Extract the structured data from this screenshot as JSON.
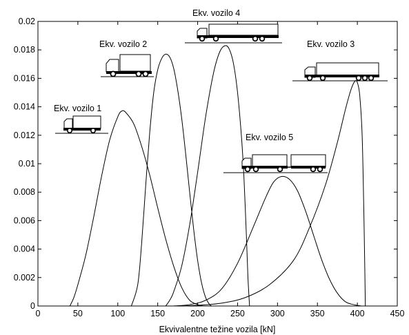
{
  "chart_data": {
    "type": "line",
    "title": "",
    "xlabel": "Ekvivalentne težine vozila [kN]",
    "ylabel": "",
    "xlim": [
      0,
      450
    ],
    "ylim": [
      0,
      0.02
    ],
    "grid": false,
    "legend": "none",
    "x_ticks": [
      "0",
      "50",
      "100",
      "150",
      "200",
      "250",
      "300",
      "350",
      "400",
      "450"
    ],
    "y_ticks": [
      "0",
      "0.002",
      "0.004",
      "0.006",
      "0.008",
      "0.01",
      "0.012",
      "0.014",
      "0.016",
      "0.018",
      "0.02"
    ],
    "series": [
      {
        "label": "Ekv. vozilo 1",
        "points": [
          [
            40,
            0
          ],
          [
            45,
            0.0006
          ],
          [
            50,
            0.0015
          ],
          [
            60,
            0.0036
          ],
          [
            70,
            0.0063
          ],
          [
            80,
            0.0092
          ],
          [
            90,
            0.0117
          ],
          [
            100,
            0.0133
          ],
          [
            105,
            0.0137
          ],
          [
            110,
            0.0136
          ],
          [
            120,
            0.0128
          ],
          [
            130,
            0.0112
          ],
          [
            140,
            0.0092
          ],
          [
            150,
            0.0069
          ],
          [
            160,
            0.0047
          ],
          [
            170,
            0.0028
          ],
          [
            180,
            0.0013
          ],
          [
            190,
            0.0004
          ],
          [
            200,
            0.0001
          ],
          [
            207,
            0
          ]
        ]
      },
      {
        "label": "Ekv. vozilo 2",
        "points": [
          [
            117,
            0
          ],
          [
            125,
            0.0015
          ],
          [
            130,
            0.0045
          ],
          [
            135,
            0.0085
          ],
          [
            140,
            0.0122
          ],
          [
            145,
            0.015
          ],
          [
            150,
            0.0166
          ],
          [
            155,
            0.0174
          ],
          [
            160,
            0.0177
          ],
          [
            165,
            0.0175
          ],
          [
            170,
            0.0167
          ],
          [
            175,
            0.0152
          ],
          [
            180,
            0.0132
          ],
          [
            185,
            0.0107
          ],
          [
            190,
            0.008
          ],
          [
            195,
            0.0054
          ],
          [
            200,
            0.0032
          ],
          [
            205,
            0.0016
          ],
          [
            210,
            0.0006
          ],
          [
            215,
            0.0001
          ],
          [
            218,
            0
          ]
        ]
      },
      {
        "label": "Ekv. vozilo 4",
        "points": [
          [
            160,
            0
          ],
          [
            165,
            0.0004
          ],
          [
            170,
            0.001
          ],
          [
            180,
            0.0028
          ],
          [
            190,
            0.0057
          ],
          [
            200,
            0.0094
          ],
          [
            210,
            0.0133
          ],
          [
            220,
            0.0164
          ],
          [
            228,
            0.0179
          ],
          [
            235,
            0.0183
          ],
          [
            240,
            0.018
          ],
          [
            245,
            0.017
          ],
          [
            250,
            0.015
          ],
          [
            255,
            0.0118
          ],
          [
            258,
            0.009
          ],
          [
            261,
            0.005
          ],
          [
            263,
            0.002
          ],
          [
            265,
            0
          ]
        ]
      },
      {
        "label": "Ekv. vozilo 3",
        "points": [
          [
            170,
            0
          ],
          [
            200,
            5e-05
          ],
          [
            230,
            0.0002
          ],
          [
            260,
            0.0006
          ],
          [
            290,
            0.0015
          ],
          [
            320,
            0.0032
          ],
          [
            340,
            0.0055
          ],
          [
            360,
            0.0085
          ],
          [
            375,
            0.0115
          ],
          [
            385,
            0.0138
          ],
          [
            392,
            0.0152
          ],
          [
            397,
            0.0158
          ],
          [
            400,
            0.0157
          ],
          [
            403,
            0.0148
          ],
          [
            406,
            0.012
          ],
          [
            408,
            0.007
          ],
          [
            409.5,
            0.002
          ],
          [
            410,
            0
          ]
        ]
      },
      {
        "label": "Ekv. vozilo 5",
        "points": [
          [
            170,
            0
          ],
          [
            190,
            0.0001
          ],
          [
            210,
            0.0004
          ],
          [
            230,
            0.0012
          ],
          [
            250,
            0.003
          ],
          [
            270,
            0.0056
          ],
          [
            285,
            0.0076
          ],
          [
            295,
            0.0087
          ],
          [
            305,
            0.0091
          ],
          [
            315,
            0.0089
          ],
          [
            325,
            0.0081
          ],
          [
            335,
            0.0067
          ],
          [
            345,
            0.005
          ],
          [
            355,
            0.0033
          ],
          [
            365,
            0.0019
          ],
          [
            375,
            0.0009
          ],
          [
            385,
            0.0003
          ],
          [
            395,
            0.0001
          ],
          [
            405,
            0
          ]
        ]
      }
    ],
    "annotations": [
      {
        "label": "Ekv. vozilo 1",
        "icon": "truck-2-axle-icon"
      },
      {
        "label": "Ekv. vozilo 2",
        "icon": "truck-3-axle-icon"
      },
      {
        "label": "Ekv. vozilo 4",
        "icon": "truck-trailer-4-axle-icon"
      },
      {
        "label": "Ekv. vozilo 3",
        "icon": "truck-trailer-5-axle-icon"
      },
      {
        "label": "Ekv. vozilo 5",
        "icon": "truck-drawbar-trailer-icon"
      }
    ]
  }
}
